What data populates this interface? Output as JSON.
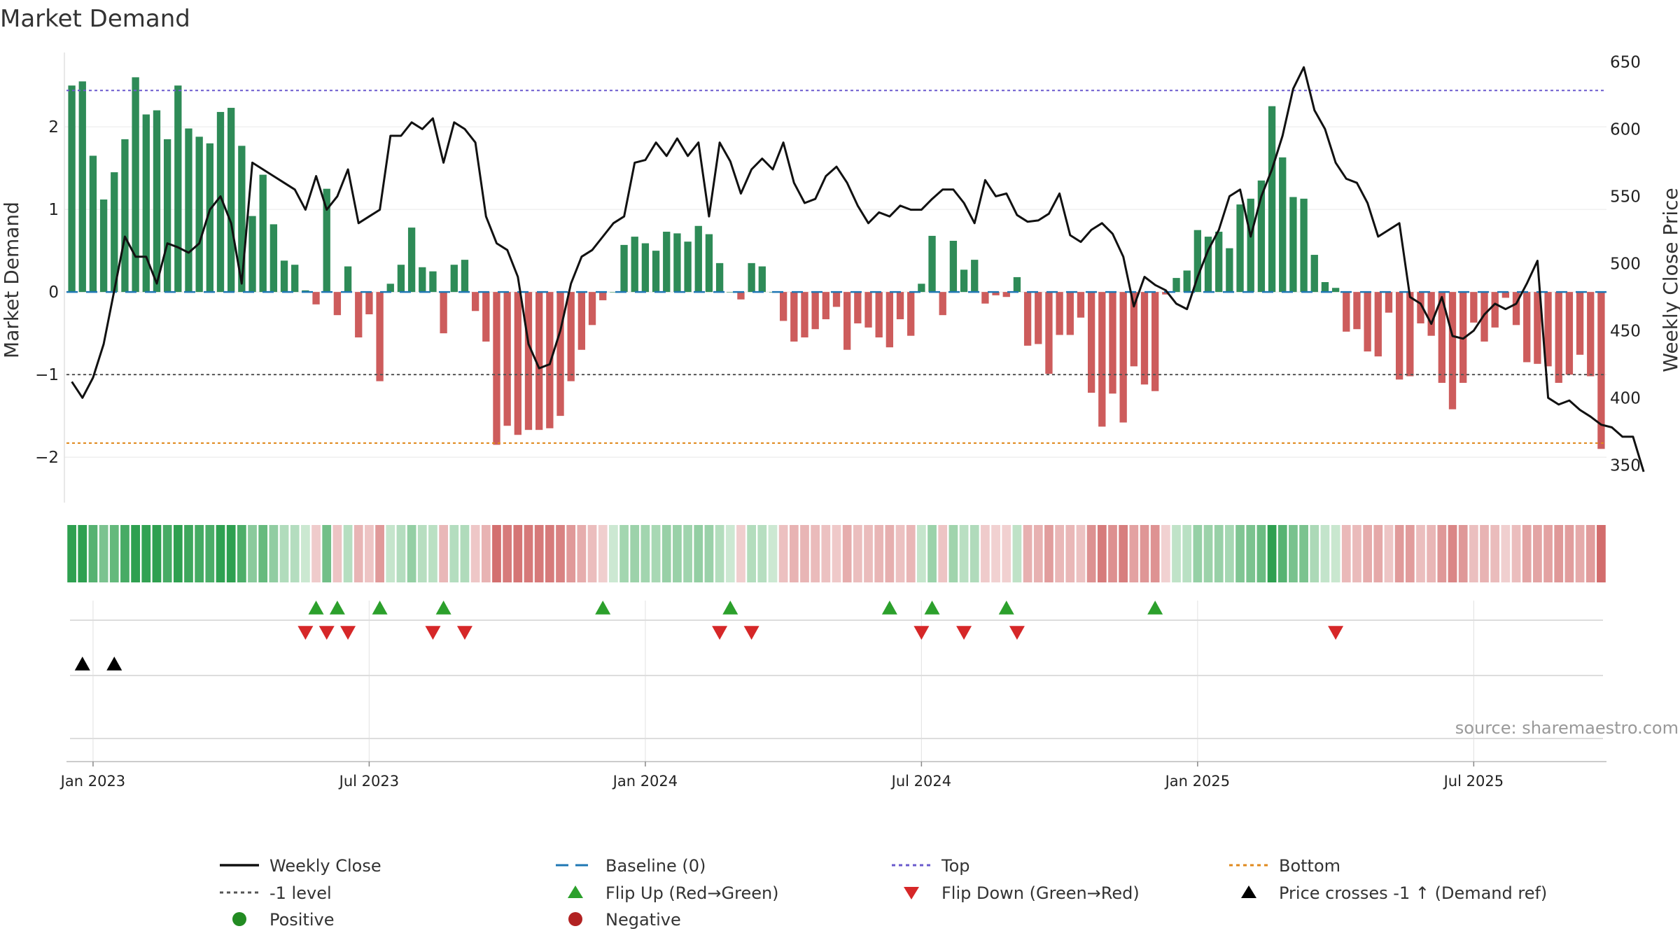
{
  "chart_data": {
    "type": "bar",
    "title": "Market Demand",
    "ylabel": "Market Demand",
    "y2label": "Weekly Close Price",
    "ylim": [
      -2.55,
      2.9
    ],
    "y2lim": [
      322,
      657
    ],
    "yticks": [
      -2,
      -1,
      0,
      1,
      2
    ],
    "y2ticks": [
      350,
      400,
      450,
      500,
      550,
      600,
      650
    ],
    "ytick_labels": [
      "−2",
      "−1",
      "0",
      "1",
      "2"
    ],
    "y2tick_labels": [
      "350",
      "400",
      "450",
      "500",
      "550",
      "600",
      "650"
    ],
    "date_ticks": [
      {
        "label": "Jan 2023",
        "week": 2
      },
      {
        "label": "Jul 2023",
        "week": 28
      },
      {
        "label": "Jan 2024",
        "week": 54
      },
      {
        "label": "Jul 2024",
        "week": 80
      },
      {
        "label": "Jan 2025",
        "week": 106
      },
      {
        "label": "Jul 2025",
        "week": 132
      }
    ],
    "weeks_total": 145,
    "reference_lines": {
      "top": 2.44,
      "bottom": -1.83,
      "minus_one": -1,
      "baseline": 0
    },
    "series": [
      {
        "name": "Market Demand",
        "kind": "bar",
        "values": [
          2.5,
          2.55,
          1.65,
          1.12,
          1.45,
          1.85,
          2.6,
          2.15,
          2.2,
          1.85,
          2.5,
          1.98,
          1.88,
          1.8,
          2.18,
          2.23,
          1.77,
          0.92,
          1.42,
          0.82,
          0.38,
          0.33,
          0.02,
          -0.15,
          1.25,
          -0.28,
          0.31,
          -0.55,
          -0.27,
          -1.08,
          0.1,
          0.33,
          0.78,
          0.3,
          0.25,
          -0.5,
          0.33,
          0.39,
          -0.23,
          -0.6,
          -1.85,
          -1.62,
          -1.73,
          -1.67,
          -1.67,
          -1.65,
          -1.5,
          -1.08,
          -0.7,
          -0.4,
          -0.1,
          0.0,
          0.57,
          0.67,
          0.59,
          0.5,
          0.73,
          0.71,
          0.61,
          0.8,
          0.7,
          0.35,
          0.0,
          -0.09,
          0.35,
          0.31,
          0.0,
          -0.35,
          -0.6,
          -0.55,
          -0.45,
          -0.33,
          -0.18,
          -0.7,
          -0.38,
          -0.43,
          -0.55,
          -0.67,
          -0.33,
          -0.53,
          0.1,
          0.68,
          -0.28,
          0.62,
          0.27,
          0.39,
          -0.14,
          -0.04,
          -0.06,
          0.18,
          -0.65,
          -0.63,
          -0.99,
          -0.52,
          -0.52,
          -0.31,
          -1.22,
          -1.63,
          -1.23,
          -1.58,
          -0.9,
          -1.12,
          -1.2,
          -0.03,
          0.17,
          0.26,
          0.75,
          0.67,
          0.73,
          0.53,
          1.06,
          1.13,
          1.35,
          2.25,
          1.63,
          1.15,
          1.13,
          0.45,
          0.12,
          0.05,
          -0.48,
          -0.45,
          -0.72,
          -0.78,
          -0.25,
          -1.06,
          -1.02,
          -0.38,
          -0.53,
          -1.1,
          -1.42,
          -1.1,
          -0.37,
          -0.6,
          -0.43,
          -0.07,
          -0.4,
          -0.85,
          -0.87,
          -0.9,
          -1.1,
          -1.0,
          -0.76,
          -1.02,
          -1.9
        ],
        "positive_color": "#2e8b57",
        "negative_color": "#cd5c5c"
      },
      {
        "name": "Weekly Close",
        "kind": "line",
        "axis": "y2",
        "values": [
          412,
          400,
          415,
          440,
          480,
          520,
          505,
          505,
          485,
          515,
          512,
          508,
          515,
          540,
          550,
          530,
          485,
          575,
          570,
          565,
          560,
          555,
          540,
          565,
          540,
          550,
          570,
          530,
          535,
          540,
          595,
          595,
          605,
          600,
          608,
          575,
          605,
          600,
          590,
          535,
          515,
          510,
          490,
          440,
          422,
          425,
          450,
          485,
          505,
          510,
          520,
          530,
          535,
          575,
          577,
          590,
          580,
          593,
          580,
          590,
          535,
          590,
          576,
          552,
          570,
          578,
          570,
          590,
          560,
          545,
          548,
          565,
          572,
          560,
          543,
          530,
          538,
          535,
          543,
          540,
          540,
          548,
          555,
          555,
          545,
          530,
          562,
          550,
          552,
          536,
          531,
          532,
          537,
          552,
          521,
          516,
          525,
          530,
          522,
          505,
          468,
          490,
          484,
          480,
          470,
          466,
          490,
          510,
          525,
          550,
          555,
          520,
          550,
          570,
          595,
          630,
          646,
          614,
          600,
          575,
          563,
          560,
          545,
          520,
          525,
          530,
          475,
          470,
          455,
          475,
          446,
          444,
          450,
          462,
          470,
          466,
          470,
          485,
          502,
          400,
          395,
          398,
          391,
          386,
          380,
          378,
          371,
          371,
          345
        ],
        "color": "#111111"
      }
    ],
    "strip_values": [
      2.5,
      2.55,
      1.65,
      1.12,
      1.45,
      1.85,
      2.6,
      2.15,
      2.2,
      1.85,
      2.5,
      1.98,
      1.88,
      1.8,
      2.18,
      2.23,
      1.77,
      0.92,
      1.42,
      0.82,
      0.38,
      0.33,
      0.02,
      -0.15,
      1.25,
      -0.28,
      0.31,
      -0.55,
      -0.27,
      -1.08,
      0.1,
      0.33,
      0.78,
      0.3,
      0.25,
      -0.5,
      0.33,
      0.39,
      -0.23,
      -0.6,
      -1.85,
      -1.62,
      -1.73,
      -1.67,
      -1.67,
      -1.65,
      -1.5,
      -1.08,
      -0.7,
      -0.4,
      -0.1,
      0.0,
      0.57,
      0.67,
      0.59,
      0.5,
      0.73,
      0.71,
      0.61,
      0.8,
      0.7,
      0.35,
      0.0,
      -0.09,
      0.35,
      0.31,
      0.0,
      -0.35,
      -0.6,
      -0.55,
      -0.45,
      -0.33,
      -0.18,
      -0.7,
      -0.38,
      -0.43,
      -0.55,
      -0.67,
      -0.33,
      -0.53,
      0.1,
      0.68,
      -0.28,
      0.62,
      0.27,
      0.39,
      -0.14,
      -0.04,
      -0.06,
      0.18,
      -0.65,
      -0.63,
      -0.99,
      -0.52,
      -0.52,
      -0.31,
      -1.22,
      -1.63,
      -1.23,
      -1.58,
      -0.9,
      -1.12,
      -1.2,
      -0.03,
      0.17,
      0.26,
      0.75,
      0.67,
      0.73,
      0.53,
      1.06,
      1.13,
      1.35,
      2.25,
      1.63,
      1.15,
      1.13,
      0.45,
      0.12,
      0.05,
      -0.48,
      -0.45,
      -0.72,
      -0.78,
      -0.25,
      -1.06,
      -1.02,
      -0.38,
      -0.53,
      -1.1,
      -1.42,
      -1.1,
      -0.37,
      -0.6,
      -0.43,
      -0.07,
      -0.4,
      -0.85,
      -0.87,
      -0.9,
      -1.1,
      -1.0,
      -0.76,
      -1.02,
      -1.9
    ],
    "flip_up_weeks": [
      23,
      25,
      29,
      35,
      50,
      62,
      77,
      81,
      88,
      102
    ],
    "flip_down_weeks": [
      22,
      24,
      26,
      34,
      37,
      61,
      64,
      80,
      84,
      89,
      119
    ],
    "price_cross_weeks": [
      1,
      4
    ],
    "source": "source: sharemaestro.com",
    "legend": [
      {
        "label": "Weekly Close",
        "marker": "line",
        "color": "#111111"
      },
      {
        "label": "Baseline (0)",
        "marker": "dash",
        "color": "#1f77b4"
      },
      {
        "label": "Top",
        "marker": "dot",
        "color": "#6a5acd"
      },
      {
        "label": "Bottom",
        "marker": "dot",
        "color": "#e08a1e"
      },
      {
        "label": "-1 level",
        "marker": "dot",
        "color": "#555555"
      },
      {
        "label": "Flip Up (Red→Green)",
        "marker": "tri-up",
        "color": "#2ca02c"
      },
      {
        "label": "Flip Down (Green→Red)",
        "marker": "tri-down",
        "color": "#d62728"
      },
      {
        "label": "Price crosses -1 ↑ (Demand ref)",
        "marker": "tri-up",
        "color": "#000000"
      },
      {
        "label": "Positive",
        "marker": "circle",
        "color": "#228b22"
      },
      {
        "label": "Negative",
        "marker": "circle",
        "color": "#b22222"
      }
    ]
  }
}
